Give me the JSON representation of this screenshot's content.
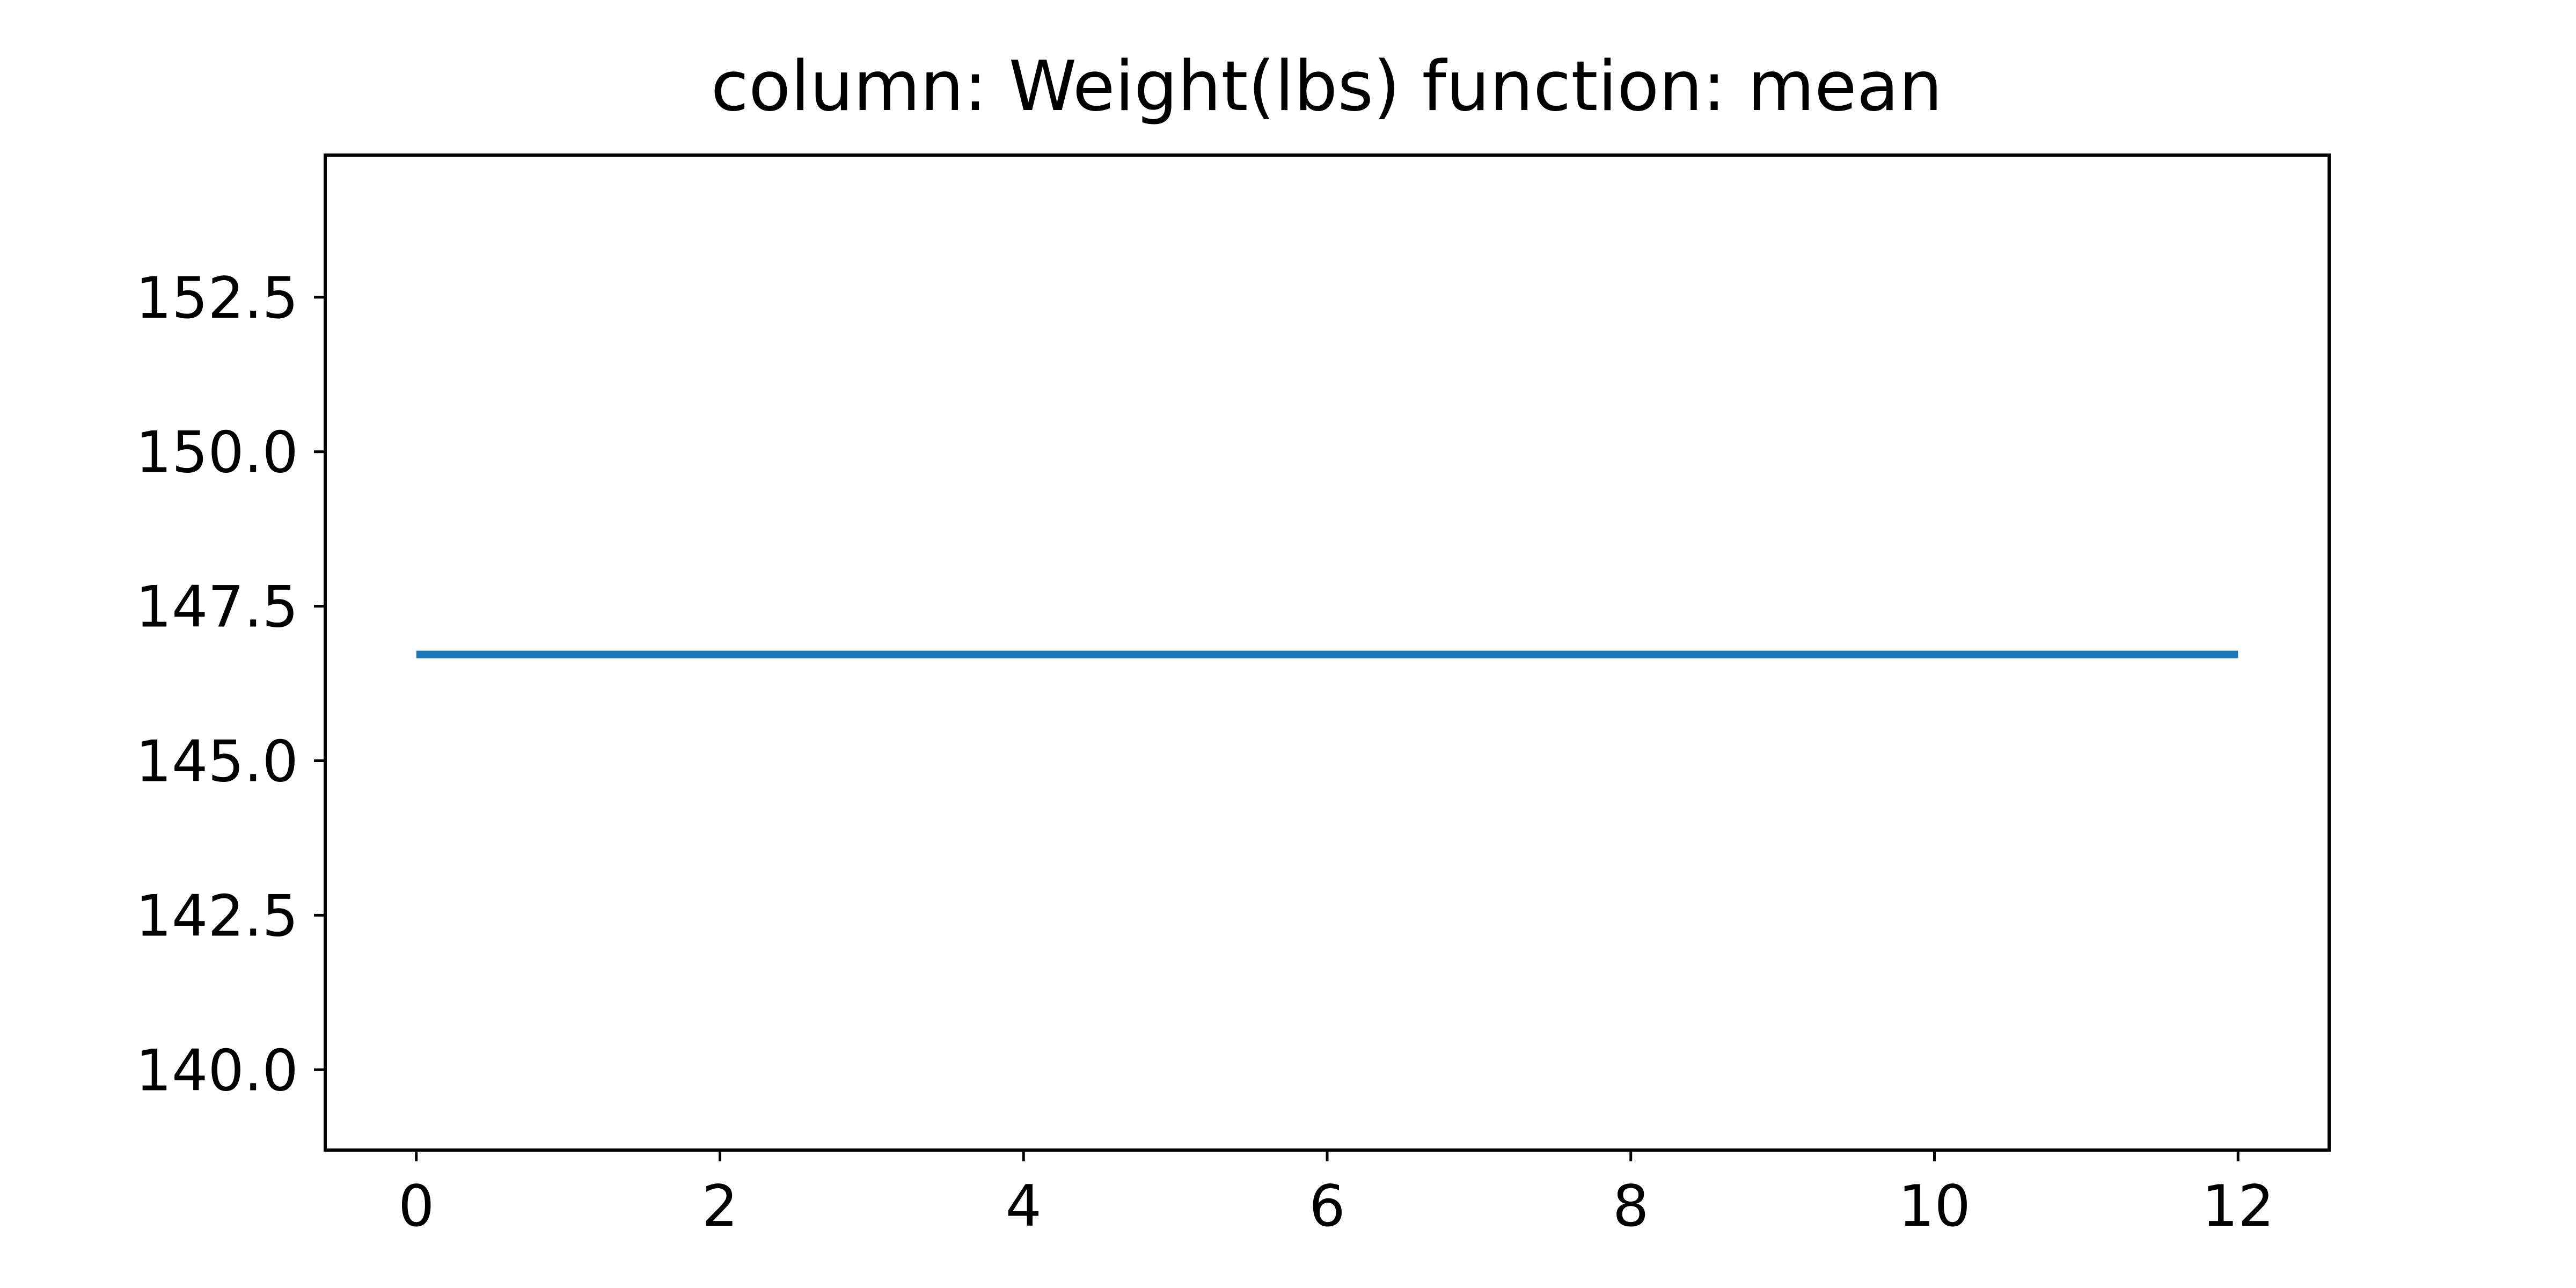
{
  "chart_data": {
    "type": "line",
    "title": "column: Weight(lbs) function: mean",
    "xlabel": "",
    "ylabel": "",
    "x": [
      0,
      1,
      2,
      3,
      4,
      5,
      6,
      7,
      8,
      9,
      10,
      11,
      12
    ],
    "series": [
      {
        "values": [
          146.72,
          146.72,
          146.72,
          146.72,
          146.72,
          146.72,
          146.72,
          146.72,
          146.72,
          146.72,
          146.72,
          146.72,
          146.72
        ]
      }
    ],
    "xlim": [
      -0.6,
      12.6
    ],
    "ylim": [
      138.7,
      154.8
    ],
    "xticks": [
      0,
      2,
      4,
      6,
      8,
      10,
      12
    ],
    "xtick_labels": [
      "0",
      "2",
      "4",
      "6",
      "8",
      "10",
      "12"
    ],
    "yticks": [
      140.0,
      142.5,
      145.0,
      147.5,
      150.0,
      152.5
    ],
    "ytick_labels": [
      "140.0",
      "142.5",
      "145.0",
      "147.5",
      "150.0",
      "152.5"
    ],
    "grid": false,
    "legend": "none",
    "line_color": "#1f77b4"
  }
}
